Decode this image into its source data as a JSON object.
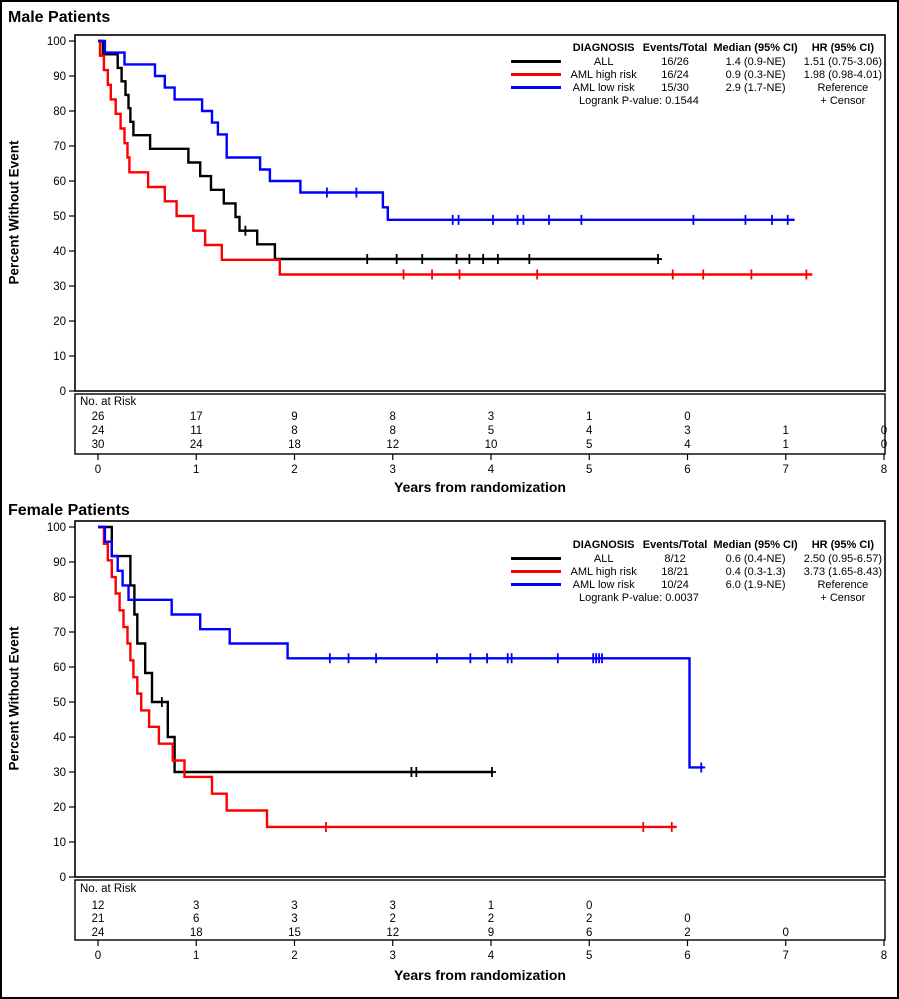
{
  "chart_data": [
    {
      "type": "line",
      "subtype": "kaplan-meier-step",
      "title": "Male Patients",
      "xlabel": "Years from randomization",
      "ylabel": "Percent Without Event",
      "xlim": [
        0,
        8
      ],
      "ylim": [
        0,
        100
      ],
      "xticks": [
        "0",
        "1",
        "2",
        "3",
        "4",
        "5",
        "6",
        "7",
        "8"
      ],
      "yticks": [
        "0",
        "10",
        "20",
        "30",
        "40",
        "50",
        "60",
        "70",
        "80",
        "90",
        "100"
      ],
      "grid": false,
      "legend_position": "top-right",
      "legend": {
        "headers": [
          "DIAGNOSIS",
          "Events/Total",
          "Median (95% CI)",
          "HR (95% CI)"
        ],
        "rows": [
          {
            "label": "ALL",
            "events": "16/26",
            "median": "1.4 (0.9-NE)",
            "hr": "1.51 (0.75-3.06)",
            "color": "#000000"
          },
          {
            "label": "AML high risk",
            "events": "16/24",
            "median": "0.9 (0.3-NE)",
            "hr": "1.98 (0.98-4.01)",
            "color": "#FF0000"
          },
          {
            "label": "AML low risk",
            "events": "15/30",
            "median": "2.9 (1.7-NE)",
            "hr": "Reference",
            "color": "#0000FF"
          }
        ],
        "pvalue": "Logrank P-value: 0.1544",
        "censor": "+ Censor"
      },
      "series": [
        {
          "name": "ALL",
          "color": "#000000",
          "steps": [
            [
              0,
              100
            ],
            [
              0.05,
              96.2
            ],
            [
              0.2,
              92.3
            ],
            [
              0.24,
              88.5
            ],
            [
              0.28,
              84.6
            ],
            [
              0.31,
              80.8
            ],
            [
              0.33,
              76.9
            ],
            [
              0.36,
              73.1
            ],
            [
              0.53,
              69.2
            ],
            [
              0.92,
              65.3
            ],
            [
              1.04,
              61.4
            ],
            [
              1.15,
              57.5
            ],
            [
              1.28,
              53.6
            ],
            [
              1.4,
              49.7
            ],
            [
              1.44,
              45.8
            ],
            [
              1.62,
              41.9
            ],
            [
              1.8,
              37.7
            ],
            [
              5.7,
              37.7
            ]
          ],
          "censors": [
            [
              1.5,
              45.8
            ],
            [
              2.74,
              37.7
            ],
            [
              3.04,
              37.7
            ],
            [
              3.3,
              37.7
            ],
            [
              3.65,
              37.7
            ],
            [
              3.78,
              37.7
            ],
            [
              3.92,
              37.7
            ],
            [
              4.07,
              37.7
            ],
            [
              4.39,
              37.7
            ],
            [
              5.7,
              37.7
            ]
          ]
        },
        {
          "name": "AML high risk",
          "color": "#FF0000",
          "steps": [
            [
              0,
              100
            ],
            [
              0.02,
              95.8
            ],
            [
              0.06,
              91.7
            ],
            [
              0.1,
              87.5
            ],
            [
              0.13,
              83.3
            ],
            [
              0.18,
              79.2
            ],
            [
              0.23,
              75.0
            ],
            [
              0.27,
              70.8
            ],
            [
              0.3,
              66.7
            ],
            [
              0.32,
              62.5
            ],
            [
              0.51,
              58.3
            ],
            [
              0.68,
              54.2
            ],
            [
              0.8,
              50.0
            ],
            [
              0.97,
              45.8
            ],
            [
              1.09,
              41.7
            ],
            [
              1.26,
              37.5
            ],
            [
              1.85,
              33.3
            ],
            [
              7.27,
              33.3
            ]
          ],
          "censors": [
            [
              3.11,
              33.3
            ],
            [
              3.4,
              33.3
            ],
            [
              3.68,
              33.3
            ],
            [
              4.47,
              33.3
            ],
            [
              5.85,
              33.3
            ],
            [
              6.16,
              33.3
            ],
            [
              6.65,
              33.3
            ],
            [
              7.21,
              33.3
            ]
          ]
        },
        {
          "name": "AML low risk",
          "color": "#0000FF",
          "steps": [
            [
              0,
              100
            ],
            [
              0.07,
              96.7
            ],
            [
              0.27,
              93.3
            ],
            [
              0.58,
              90.0
            ],
            [
              0.68,
              86.7
            ],
            [
              0.78,
              83.3
            ],
            [
              1.06,
              80.0
            ],
            [
              1.16,
              76.7
            ],
            [
              1.22,
              73.3
            ],
            [
              1.31,
              66.7
            ],
            [
              1.65,
              63.3
            ],
            [
              1.75,
              60.0
            ],
            [
              2.06,
              56.7
            ],
            [
              2.9,
              52.5
            ],
            [
              2.95,
              48.9
            ],
            [
              7.09,
              48.9
            ]
          ],
          "censors": [
            [
              2.33,
              56.7
            ],
            [
              2.63,
              56.7
            ],
            [
              3.61,
              48.9
            ],
            [
              3.67,
              48.9
            ],
            [
              4.02,
              48.9
            ],
            [
              4.27,
              48.9
            ],
            [
              4.33,
              48.9
            ],
            [
              4.59,
              48.9
            ],
            [
              4.92,
              48.9
            ],
            [
              6.06,
              48.9
            ],
            [
              6.59,
              48.9
            ],
            [
              6.86,
              48.9
            ],
            [
              7.02,
              48.9
            ]
          ]
        }
      ],
      "at_risk": {
        "label": "No. at Risk",
        "times": [
          0,
          1,
          2,
          3,
          4,
          5,
          6,
          7,
          8
        ],
        "rows": [
          {
            "name": "ALL",
            "color": "#000000",
            "counts": [
              "26",
              "17",
              "9",
              "8",
              "3",
              "1",
              "0",
              "",
              ""
            ]
          },
          {
            "name": "AML high risk",
            "color": "#FF0000",
            "counts": [
              "24",
              "11",
              "8",
              "8",
              "5",
              "4",
              "3",
              "1",
              "0"
            ]
          },
          {
            "name": "AML low risk",
            "color": "#0000FF",
            "counts": [
              "30",
              "24",
              "18",
              "12",
              "10",
              "5",
              "4",
              "1",
              "0"
            ]
          }
        ]
      }
    },
    {
      "type": "line",
      "subtype": "kaplan-meier-step",
      "title": "Female Patients",
      "xlabel": "Years from randomization",
      "ylabel": "Percent Without Event",
      "xlim": [
        0,
        8
      ],
      "ylim": [
        0,
        100
      ],
      "xticks": [
        "0",
        "1",
        "2",
        "3",
        "4",
        "5",
        "6",
        "7",
        "8"
      ],
      "yticks": [
        "0",
        "10",
        "20",
        "30",
        "40",
        "50",
        "60",
        "70",
        "80",
        "90",
        "100"
      ],
      "grid": false,
      "legend_position": "top-right",
      "legend": {
        "headers": [
          "DIAGNOSIS",
          "Events/Total",
          "Median (95% CI)",
          "HR (95% CI)"
        ],
        "rows": [
          {
            "label": "ALL",
            "events": "8/12",
            "median": "0.6 (0.4-NE)",
            "hr": "2.50 (0.95-6.57)",
            "color": "#000000"
          },
          {
            "label": "AML high risk",
            "events": "18/21",
            "median": "0.4 (0.3-1.3)",
            "hr": "3.73 (1.65-8.43)",
            "color": "#FF0000"
          },
          {
            "label": "AML low risk",
            "events": "10/24",
            "median": "6.0 (1.9-NE)",
            "hr": "Reference",
            "color": "#0000FF"
          }
        ],
        "pvalue": "Logrank P-value: 0.0037",
        "censor": "+ Censor"
      },
      "series": [
        {
          "name": "ALL",
          "color": "#000000",
          "steps": [
            [
              0,
              100
            ],
            [
              0.14,
              91.7
            ],
            [
              0.33,
              83.3
            ],
            [
              0.37,
              75.0
            ],
            [
              0.4,
              66.7
            ],
            [
              0.48,
              58.3
            ],
            [
              0.55,
              50.0
            ],
            [
              0.71,
              40.0
            ],
            [
              0.78,
              30.0
            ],
            [
              4.01,
              30.0
            ]
          ],
          "censors": [
            [
              0.65,
              50.0
            ],
            [
              3.19,
              30.0
            ],
            [
              3.24,
              30.0
            ],
            [
              4.01,
              30.0
            ]
          ]
        },
        {
          "name": "AML high risk",
          "color": "#FF0000",
          "steps": [
            [
              0,
              100
            ],
            [
              0.06,
              95.2
            ],
            [
              0.1,
              90.5
            ],
            [
              0.14,
              85.7
            ],
            [
              0.18,
              81.0
            ],
            [
              0.22,
              76.2
            ],
            [
              0.26,
              71.4
            ],
            [
              0.3,
              66.7
            ],
            [
              0.33,
              61.9
            ],
            [
              0.36,
              57.1
            ],
            [
              0.4,
              52.4
            ],
            [
              0.44,
              47.6
            ],
            [
              0.52,
              42.9
            ],
            [
              0.62,
              38.1
            ],
            [
              0.76,
              33.3
            ],
            [
              0.88,
              28.6
            ],
            [
              1.16,
              23.8
            ],
            [
              1.31,
              19.0
            ],
            [
              1.72,
              14.3
            ],
            [
              5.89,
              14.3
            ]
          ],
          "censors": [
            [
              2.32,
              14.3
            ],
            [
              5.55,
              14.3
            ],
            [
              5.84,
              14.3
            ]
          ]
        },
        {
          "name": "AML low risk",
          "color": "#0000FF",
          "steps": [
            [
              0,
              100
            ],
            [
              0.07,
              95.8
            ],
            [
              0.14,
              91.7
            ],
            [
              0.2,
              87.5
            ],
            [
              0.25,
              83.3
            ],
            [
              0.31,
              79.2
            ],
            [
              0.75,
              75.0
            ],
            [
              1.04,
              70.8
            ],
            [
              1.34,
              66.7
            ],
            [
              1.93,
              62.5
            ],
            [
              6.02,
              31.3
            ],
            [
              6.16,
              31.3
            ]
          ],
          "censors": [
            [
              2.36,
              62.5
            ],
            [
              2.55,
              62.5
            ],
            [
              2.83,
              62.5
            ],
            [
              3.45,
              62.5
            ],
            [
              3.79,
              62.5
            ],
            [
              3.96,
              62.5
            ],
            [
              4.17,
              62.5
            ],
            [
              4.21,
              62.5
            ],
            [
              4.68,
              62.5
            ],
            [
              5.04,
              62.5
            ],
            [
              5.07,
              62.5
            ],
            [
              5.1,
              62.5
            ],
            [
              5.13,
              62.5
            ],
            [
              6.14,
              31.3
            ]
          ]
        }
      ],
      "at_risk": {
        "label": "No. at Risk",
        "times": [
          0,
          1,
          2,
          3,
          4,
          5,
          6,
          7,
          8
        ],
        "rows": [
          {
            "name": "ALL",
            "color": "#000000",
            "counts": [
              "12",
              "3",
              "3",
              "3",
              "1",
              "0",
              "",
              "",
              ""
            ]
          },
          {
            "name": "AML high risk",
            "color": "#FF0000",
            "counts": [
              "21",
              "6",
              "3",
              "2",
              "2",
              "2",
              "0",
              "",
              ""
            ]
          },
          {
            "name": "AML low risk",
            "color": "#0000FF",
            "counts": [
              "24",
              "18",
              "15",
              "12",
              "9",
              "6",
              "2",
              "0",
              ""
            ]
          }
        ]
      }
    }
  ]
}
